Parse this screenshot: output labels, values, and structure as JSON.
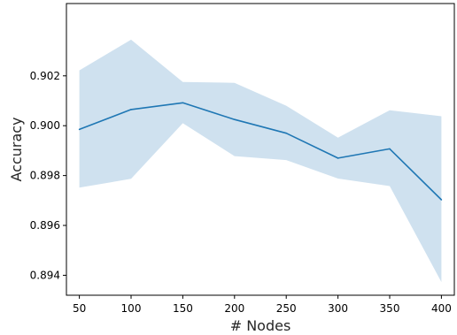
{
  "chart_data": {
    "type": "line",
    "title": "",
    "xlabel": "# Nodes",
    "ylabel": "Accuracy",
    "x": [
      50,
      100,
      150,
      200,
      250,
      300,
      350,
      400
    ],
    "series": [
      {
        "values": [
          0.89985,
          0.90065,
          0.90092,
          0.90025,
          0.8997,
          0.8987,
          0.89907,
          0.89703
        ],
        "upper": [
          0.90222,
          0.90345,
          0.90175,
          0.90172,
          0.9008,
          0.89952,
          0.90062,
          0.90038
        ],
        "lower": [
          0.89752,
          0.89787,
          0.9001,
          0.89878,
          0.89862,
          0.89788,
          0.89758,
          0.89373
        ],
        "color": "#1f77b4",
        "band_color": "#cfe1ef"
      }
    ],
    "xlim": [
      37.5,
      412.5
    ],
    "ylim": [
      0.8932,
      0.9049
    ],
    "xticks": [
      50,
      100,
      150,
      200,
      250,
      300,
      350,
      400
    ],
    "xtick_labels": [
      "50",
      "100",
      "150",
      "200",
      "250",
      "300",
      "350",
      "400"
    ],
    "yticks": [
      0.894,
      0.896,
      0.898,
      0.9,
      0.902
    ],
    "ytick_labels": [
      "0.894",
      "0.896",
      "0.898",
      "0.900",
      "0.902"
    ],
    "grid": false,
    "legend": "none"
  }
}
